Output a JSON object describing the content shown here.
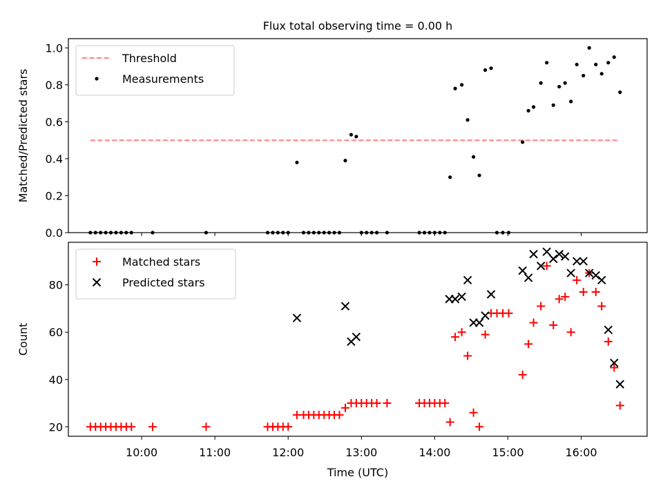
{
  "title": "Flux total observing time = 0.00 h",
  "colors": {
    "threshold": "#ff7f7f",
    "measurement": "#000000",
    "matched": "#ff0000",
    "predicted": "#000000"
  },
  "chart_data": [
    {
      "type": "scatter",
      "ylabel": "Matched/Predicted stars",
      "ylim": [
        0,
        1.05
      ],
      "yticks": [
        0.0,
        0.2,
        0.4,
        0.6,
        0.8,
        1.0
      ],
      "yticklabels": [
        "0.0",
        "0.2",
        "0.4",
        "0.6",
        "0.8",
        "1.0"
      ],
      "xlim": [
        9.0,
        16.9
      ],
      "xticks": [
        10,
        11,
        12,
        13,
        14,
        15,
        16
      ],
      "legend_position": "upper-left",
      "threshold": {
        "name": "Threshold",
        "y": 0.5,
        "x": [
          9.3,
          16.5
        ]
      },
      "series": [
        {
          "name": "Measurements",
          "x": [
            9.3,
            9.37,
            9.44,
            9.51,
            9.58,
            9.65,
            9.72,
            9.79,
            9.86,
            10.15,
            10.88,
            11.72,
            11.79,
            11.86,
            11.93,
            12.0,
            12.12,
            12.21,
            12.28,
            12.35,
            12.42,
            12.49,
            12.56,
            12.63,
            12.7,
            12.78,
            12.86,
            12.93,
            13.0,
            13.07,
            13.14,
            13.21,
            13.35,
            13.79,
            13.86,
            13.93,
            14.0,
            14.07,
            14.14,
            14.21,
            14.28,
            14.37,
            14.45,
            14.53,
            14.61,
            14.69,
            14.77,
            14.85,
            14.93,
            15.01,
            15.2,
            15.28,
            15.35,
            15.45,
            15.53,
            15.62,
            15.7,
            15.78,
            15.86,
            15.94,
            16.03,
            16.11,
            16.2,
            16.28,
            16.37,
            16.45,
            16.53
          ],
          "y": [
            0,
            0,
            0,
            0,
            0,
            0,
            0,
            0,
            0,
            0,
            0,
            0,
            0,
            0,
            0,
            0,
            0.38,
            0,
            0,
            0,
            0,
            0,
            0,
            0,
            0,
            0.39,
            0.53,
            0.52,
            0,
            0,
            0,
            0,
            0,
            0,
            0,
            0,
            0,
            0,
            0,
            0.3,
            0.78,
            0.8,
            0.61,
            0.41,
            0.31,
            0.88,
            0.89,
            0,
            0,
            0,
            0.49,
            0.66,
            0.68,
            0.81,
            0.92,
            0.69,
            0.79,
            0.81,
            0.71,
            0.91,
            0.85,
            1.0,
            0.91,
            0.86,
            0.92,
            0.95,
            0.76
          ]
        }
      ]
    },
    {
      "type": "scatter",
      "ylabel": "Count",
      "xlabel": "Time (UTC)",
      "ylim": [
        16,
        98
      ],
      "yticks": [
        20,
        40,
        60,
        80
      ],
      "yticklabels": [
        "20",
        "40",
        "60",
        "80"
      ],
      "xlim": [
        9.0,
        16.9
      ],
      "xticks": [
        10,
        11,
        12,
        13,
        14,
        15,
        16
      ],
      "xticklabels": [
        "10:00",
        "11:00",
        "12:00",
        "13:00",
        "14:00",
        "15:00",
        "16:00"
      ],
      "legend_position": "upper-left",
      "series": [
        {
          "name": "Matched stars",
          "marker": "plus",
          "x": [
            9.3,
            9.37,
            9.44,
            9.51,
            9.58,
            9.65,
            9.72,
            9.79,
            9.86,
            10.15,
            10.88,
            11.72,
            11.79,
            11.86,
            11.93,
            12.0,
            12.12,
            12.21,
            12.28,
            12.35,
            12.42,
            12.49,
            12.56,
            12.63,
            12.7,
            12.78,
            12.86,
            12.93,
            13.0,
            13.07,
            13.14,
            13.21,
            13.35,
            13.79,
            13.86,
            13.93,
            14.0,
            14.07,
            14.14,
            14.21,
            14.28,
            14.37,
            14.45,
            14.53,
            14.61,
            14.69,
            14.77,
            14.85,
            14.93,
            15.01,
            15.2,
            15.28,
            15.35,
            15.45,
            15.53,
            15.62,
            15.7,
            15.78,
            15.86,
            15.94,
            16.03,
            16.11,
            16.2,
            16.28,
            16.37,
            16.45,
            16.53
          ],
          "y": [
            20,
            20,
            20,
            20,
            20,
            20,
            20,
            20,
            20,
            20,
            20,
            20,
            20,
            20,
            20,
            20,
            25,
            25,
            25,
            25,
            25,
            25,
            25,
            25,
            25,
            28,
            30,
            30,
            30,
            30,
            30,
            30,
            30,
            30,
            30,
            30,
            30,
            30,
            30,
            22,
            58,
            60,
            50,
            26,
            20,
            59,
            68,
            68,
            68,
            68,
            42,
            55,
            64,
            71,
            88,
            63,
            74,
            75,
            60,
            82,
            77,
            85,
            77,
            71,
            56,
            45,
            29
          ]
        },
        {
          "name": "Predicted stars",
          "marker": "x",
          "x": [
            12.12,
            12.78,
            12.86,
            12.93,
            14.2,
            14.28,
            14.37,
            14.45,
            14.53,
            14.61,
            14.69,
            14.77,
            15.2,
            15.28,
            15.35,
            15.45,
            15.53,
            15.62,
            15.7,
            15.78,
            15.86,
            15.94,
            16.03,
            16.11,
            16.2,
            16.28,
            16.37,
            16.45,
            16.53
          ],
          "y": [
            66,
            71,
            56,
            58,
            74,
            74,
            75,
            82,
            64,
            64,
            67,
            76,
            86,
            83,
            93,
            88,
            94,
            91,
            93,
            92,
            85,
            90,
            90,
            85,
            84,
            82,
            61,
            47,
            38
          ]
        }
      ]
    }
  ]
}
